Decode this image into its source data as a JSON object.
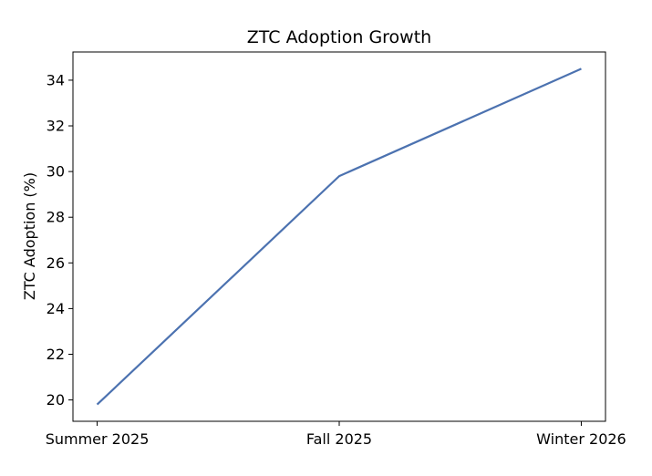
{
  "chart_data": {
    "type": "line",
    "title": "ZTC Adoption Growth",
    "xlabel": "",
    "ylabel": "ZTC Adoption (%)",
    "categories": [
      "Summer 2025",
      "Fall 2025",
      "Winter 2026"
    ],
    "series": [
      {
        "values": [
          19.8,
          29.8,
          34.5
        ],
        "color": "#4c72b0"
      }
    ],
    "yticks": [
      20,
      22,
      24,
      26,
      28,
      30,
      32,
      34
    ],
    "ylim": [
      19.065,
      35.235
    ],
    "grid": false
  }
}
